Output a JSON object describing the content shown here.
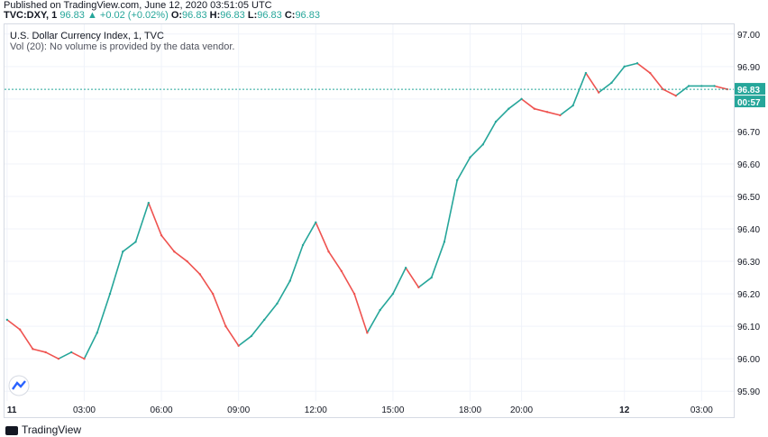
{
  "header": {
    "published": "Published on TradingView.com, June 12, 2020 03:51:05 UTC",
    "symbol": "TVC:DXY, 1",
    "price": "96.83",
    "change": "+0.02 (+0.02%)",
    "o_label": "O:",
    "o_val": "96.83",
    "h_label": "H:",
    "h_val": "96.83",
    "l_label": "L:",
    "l_val": "96.83",
    "c_label": "C:",
    "c_val": "96.83"
  },
  "overlay": {
    "title": "U.S. Dollar Currency Index, 1, TVC",
    "volume_note": "Vol (20): No volume is provided by the data vendor."
  },
  "brand": {
    "name": "TradingView"
  },
  "colors": {
    "up": "#26a69a",
    "down": "#ef5350",
    "grid": "#f0f3fa",
    "price_line": "#26a69a"
  },
  "chart_data": {
    "type": "line",
    "title": "U.S. Dollar Currency Index, 1, TVC",
    "ylim": [
      95.87,
      97.03
    ],
    "y_ticks": [
      "97.00",
      "96.90",
      "96.80",
      "96.70",
      "96.60",
      "96.50",
      "96.40",
      "96.30",
      "96.20",
      "96.10",
      "96.00",
      "95.90"
    ],
    "y_tick_values": [
      97.0,
      96.9,
      96.8,
      96.7,
      96.6,
      96.5,
      96.4,
      96.3,
      96.2,
      96.1,
      96.0,
      95.9
    ],
    "x_ticks": [
      "11",
      "03:00",
      "06:00",
      "09:00",
      "12:00",
      "15:00",
      "18:00",
      "20:00",
      "12",
      "03:00"
    ],
    "x_tick_hours": [
      0,
      3,
      6,
      9,
      12,
      15,
      18,
      20,
      24,
      27
    ],
    "xlim_hours": [
      -0.1,
      28.25
    ],
    "current_price_label": "96.83",
    "current_price": 96.83,
    "countdown_label": "00:57",
    "series": [
      {
        "x_hours": [
          0,
          0.5,
          1,
          1.5,
          2,
          2.5,
          3,
          3.5,
          4,
          4.5,
          5,
          5.5,
          6,
          6.5,
          7,
          7.5,
          8,
          8.5,
          9,
          9.5,
          10,
          10.5,
          11,
          11.5,
          12,
          12.5,
          13,
          13.5,
          14,
          14.5,
          15,
          15.5,
          16,
          16.5,
          17,
          17.5,
          18,
          18.5,
          19,
          19.5,
          20,
          20.5,
          21,
          21.5,
          22,
          22.5,
          23,
          23.5,
          24,
          24.5,
          25,
          25.5,
          26,
          26.5,
          27,
          27.5,
          28
        ],
        "values": [
          96.12,
          96.09,
          96.03,
          96.02,
          96.0,
          96.02,
          96.0,
          96.08,
          96.2,
          96.33,
          96.36,
          96.48,
          96.38,
          96.33,
          96.3,
          96.26,
          96.2,
          96.1,
          96.04,
          96.07,
          96.12,
          96.17,
          96.24,
          96.35,
          96.42,
          96.33,
          96.27,
          96.2,
          96.08,
          96.15,
          96.2,
          96.28,
          96.22,
          96.25,
          96.36,
          96.55,
          96.62,
          96.66,
          96.73,
          96.77,
          96.8,
          96.77,
          96.76,
          96.75,
          96.78,
          96.88,
          96.82,
          96.85,
          96.9,
          96.91,
          96.88,
          96.83,
          96.81,
          96.84,
          96.84,
          96.84,
          96.83
        ]
      }
    ]
  }
}
